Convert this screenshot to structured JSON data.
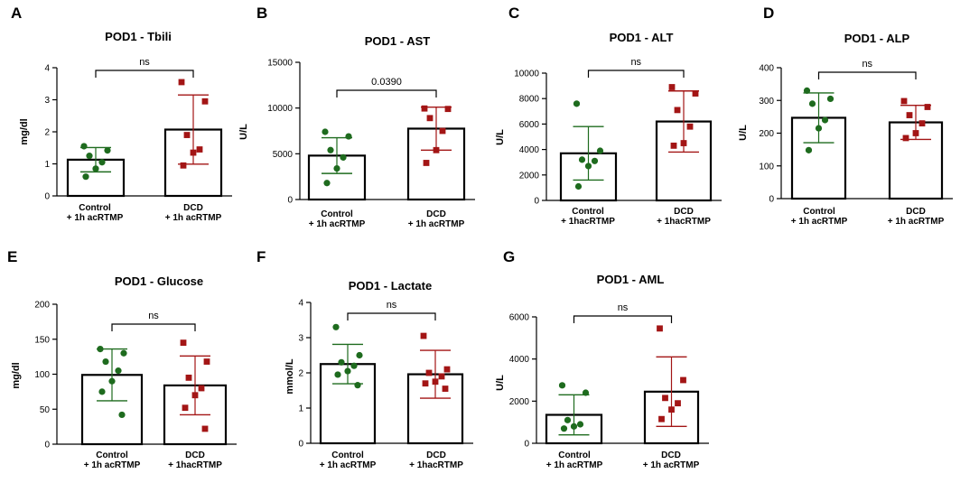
{
  "colors": {
    "control": "#1e6b1e",
    "dcd": "#a31515",
    "bar": "#000000"
  },
  "chart_data": [
    {
      "panel": "A",
      "type": "bar",
      "title": "POD1 - Tbili",
      "ylabel": "mg/dl",
      "ylim": [
        0,
        4
      ],
      "yticks": [
        "0",
        "1",
        "2",
        "3",
        "4"
      ],
      "tick_values": [
        0,
        1,
        2,
        3,
        4
      ],
      "categories": [
        [
          "Control",
          "+ 1h acRTMP"
        ],
        [
          "DCD",
          "+ 1h acRTMP"
        ]
      ],
      "series": [
        {
          "name": "Control + 1h acRTMP",
          "mean": 1.13,
          "sd": 0.38,
          "points": [
            1.55,
            1.42,
            1.25,
            1.05,
            0.85,
            0.6
          ]
        },
        {
          "name": "DCD + 1h acRTMP",
          "mean": 2.07,
          "sd": 1.08,
          "points": [
            3.55,
            2.95,
            1.9,
            1.45,
            1.35,
            0.95
          ]
        }
      ],
      "significance": "ns"
    },
    {
      "panel": "B",
      "type": "bar",
      "title": "POD1 - AST",
      "ylabel": "U/L",
      "ylim": [
        0,
        15000
      ],
      "yticks": [
        "0",
        "5000",
        "10000",
        "15000"
      ],
      "tick_values": [
        0,
        5000,
        10000,
        15000
      ],
      "categories": [
        [
          "Control",
          "+ 1h acRTMP"
        ],
        [
          "DCD",
          "+ 1h acRTMP"
        ]
      ],
      "series": [
        {
          "name": "Control + 1h acRTMP",
          "mean": 4800,
          "sd": 1950,
          "points": [
            7400,
            6900,
            5400,
            4600,
            3400,
            1800
          ]
        },
        {
          "name": "DCD + 1h acRTMP",
          "mean": 7750,
          "sd": 2350,
          "points": [
            9950,
            9900,
            8900,
            7500,
            5400,
            4000
          ]
        }
      ],
      "significance": "0.0390"
    },
    {
      "panel": "C",
      "type": "bar",
      "title": "POD1 - ALT",
      "ylabel": "U/L",
      "ylim": [
        0,
        10000
      ],
      "yticks": [
        "0",
        "2000",
        "4000",
        "6000",
        "8000",
        "10000"
      ],
      "tick_values": [
        0,
        2000,
        4000,
        6000,
        8000,
        10000
      ],
      "categories": [
        [
          "Control",
          "+ 1hacRTMP"
        ],
        [
          "DCD",
          "+ 1hacRTMP"
        ]
      ],
      "series": [
        {
          "name": "Control + 1hacRTMP",
          "mean": 3700,
          "sd": 2100,
          "points": [
            7600,
            3900,
            3200,
            3100,
            2700,
            1100
          ]
        },
        {
          "name": "DCD + 1hacRTMP",
          "mean": 6200,
          "sd": 2400,
          "points": [
            8900,
            8400,
            7100,
            5800,
            4500,
            4300
          ]
        }
      ],
      "significance": "ns"
    },
    {
      "panel": "D",
      "type": "bar",
      "title": "POD1 - ALP",
      "ylabel": "U/L",
      "ylim": [
        0,
        400
      ],
      "yticks": [
        "0",
        "100",
        "200",
        "300",
        "400"
      ],
      "tick_values": [
        0,
        100,
        200,
        300,
        400
      ],
      "categories": [
        [
          "Control",
          "+ 1h acRTMP"
        ],
        [
          "DCD",
          "+ 1h acRTMP"
        ]
      ],
      "series": [
        {
          "name": "Control + 1h acRTMP",
          "mean": 247,
          "sd": 76,
          "points": [
            330,
            305,
            290,
            240,
            215,
            148
          ]
        },
        {
          "name": "DCD + 1h acRTMP",
          "mean": 233,
          "sd": 52,
          "points": [
            298,
            280,
            255,
            230,
            200,
            185
          ]
        }
      ],
      "significance": "ns"
    },
    {
      "panel": "E",
      "type": "bar",
      "title": "POD1 - Glucose",
      "ylabel": "mg/dl",
      "ylim": [
        0,
        200
      ],
      "yticks": [
        "0",
        "50",
        "100",
        "150",
        "200"
      ],
      "tick_values": [
        0,
        50,
        100,
        150,
        200
      ],
      "categories": [
        [
          "Control",
          "+ 1h acRTMP"
        ],
        [
          "DCD",
          "+ 1hacRTMP"
        ]
      ],
      "series": [
        {
          "name": "Control + 1h acRTMP",
          "mean": 99,
          "sd": 37,
          "points": [
            136,
            130,
            118,
            105,
            90,
            75,
            42
          ]
        },
        {
          "name": "DCD + 1hacRTMP",
          "mean": 84,
          "sd": 42,
          "points": [
            145,
            118,
            95,
            80,
            70,
            52,
            22
          ]
        }
      ],
      "significance": "ns"
    },
    {
      "panel": "F",
      "type": "bar",
      "title": "POD1 - Lactate",
      "ylabel": "mmol/L",
      "ylim": [
        0,
        4
      ],
      "yticks": [
        "0",
        "1",
        "2",
        "3",
        "4"
      ],
      "tick_values": [
        0,
        1,
        2,
        3,
        4
      ],
      "categories": [
        [
          "Control",
          "+ 1h acRTMP"
        ],
        [
          "DCD",
          "+ 1hacRTMP"
        ]
      ],
      "series": [
        {
          "name": "Control + 1h acRTMP",
          "mean": 2.25,
          "sd": 0.56,
          "points": [
            3.3,
            2.5,
            2.3,
            2.2,
            2.05,
            1.95,
            1.65
          ]
        },
        {
          "name": "DCD + 1hacRTMP",
          "mean": 1.96,
          "sd": 0.68,
          "points": [
            3.05,
            2.1,
            2.0,
            1.9,
            1.75,
            1.7,
            1.55
          ]
        }
      ],
      "significance": "ns"
    },
    {
      "panel": "G",
      "type": "bar",
      "title": "POD1 - AML",
      "ylabel": "U/L",
      "ylim": [
        0,
        6000
      ],
      "yticks": [
        "0",
        "2000",
        "4000",
        "6000"
      ],
      "tick_values": [
        0,
        2000,
        4000,
        6000
      ],
      "categories": [
        [
          "Control",
          "+ 1h acRTMP"
        ],
        [
          "DCD",
          "+ 1h acRTMP"
        ]
      ],
      "series": [
        {
          "name": "Control + 1h acRTMP",
          "mean": 1350,
          "sd": 950,
          "points": [
            2750,
            2400,
            1100,
            900,
            800,
            700
          ]
        },
        {
          "name": "DCD + 1h acRTMP",
          "mean": 2450,
          "sd": 1650,
          "points": [
            5450,
            3000,
            2150,
            1900,
            1600,
            1150
          ]
        }
      ],
      "significance": "ns"
    }
  ]
}
